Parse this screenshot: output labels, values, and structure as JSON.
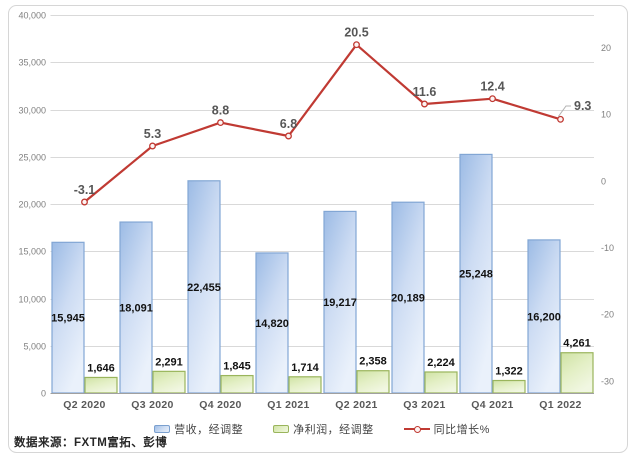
{
  "source_note": "数据来源：FXTM富拓、彭博",
  "legend": {
    "items": [
      {
        "label": "营收，经调整"
      },
      {
        "label": "净利润，经调整"
      },
      {
        "label": "同比增长%"
      }
    ]
  },
  "colors": {
    "bar_blue_top": "#9cbbe5",
    "bar_blue_mid": "#cddcf3",
    "bar_blue_bottom": "#eaf1fb",
    "bar_blue_border": "#82a6d4",
    "bar_green_top": "#cfe2a4",
    "bar_green_mid": "#e3efc5",
    "bar_green_bottom": "#f1f7e2",
    "bar_green_border": "#9ab55c",
    "line_red": "#c03a33",
    "marker_fill": "#fdf4f3",
    "grid": "#d9d9d9",
    "axis_line": "#a0a0a0",
    "frame": "#d6d6d6",
    "axis_text": "#808080",
    "category_text": "#595959",
    "bar_label_text": "#111111",
    "line_label_text": "#575757",
    "leader": "#b3b3b3"
  },
  "chart_data": {
    "type": "bar+line",
    "categories": [
      "Q2 2020",
      "Q3 2020",
      "Q4 2020",
      "Q1 2021",
      "Q2 2021",
      "Q3 2021",
      "Q4 2021",
      "Q1 2022"
    ],
    "series": [
      {
        "name": "营收，经调整",
        "type": "bar",
        "axis": "left",
        "values": [
          15945,
          18091,
          22455,
          14820,
          19217,
          20189,
          25248,
          16200
        ],
        "labels": [
          "15,945",
          "18,091",
          "22,455",
          "14,820",
          "19,217",
          "20,189",
          "25,248",
          "16,200"
        ]
      },
      {
        "name": "净利润，经调整",
        "type": "bar",
        "axis": "left",
        "values": [
          1646,
          2291,
          1845,
          1714,
          2358,
          2224,
          1322,
          4261
        ],
        "labels": [
          "1,646",
          "2,291",
          "1,845",
          "1,714",
          "2,358",
          "2,224",
          "1,322",
          "4,261"
        ]
      },
      {
        "name": "同比增长%",
        "type": "line",
        "axis": "right",
        "values": [
          -3.1,
          5.3,
          8.8,
          6.8,
          20.5,
          11.6,
          12.4,
          9.3
        ],
        "labels": [
          "-3.1",
          "5.3",
          "8.8",
          "6.8",
          "20.5",
          "11.6",
          "12.4",
          "9.3"
        ]
      }
    ],
    "left_axis": {
      "min": 0,
      "max": 40000,
      "step": 5000,
      "tick_labels": [
        "0",
        "5,000",
        "10,000",
        "15,000",
        "20,000",
        "25,000",
        "30,000",
        "35,000",
        "40,000"
      ]
    },
    "right_axis": {
      "min": -30,
      "max": 20,
      "step": 10,
      "tick_labels": [
        "-30",
        "-20",
        "-10",
        "0",
        "10",
        "20"
      ]
    },
    "grid": true,
    "legend_position": "bottom"
  }
}
